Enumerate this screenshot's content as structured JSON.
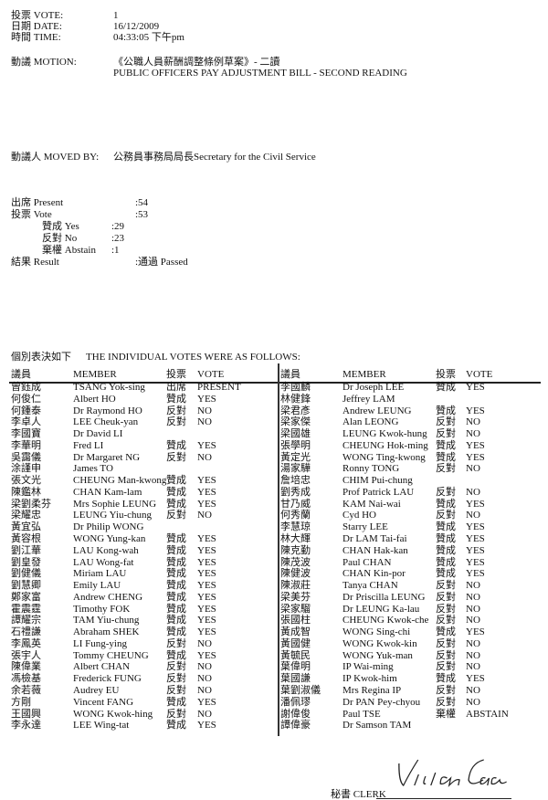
{
  "header": {
    "vote_label": "投票 VOTE:",
    "vote_value": "1",
    "date_label": "日期 DATE:",
    "date_value": "16/12/2009",
    "time_label": "時間 TIME:",
    "time_value": "04:33:05 下午pm",
    "motion_label": "動議 MOTION:",
    "motion_cn": "《公職人員薪酬調整條例草案》- 二讀",
    "motion_en": "PUBLIC OFFICERS PAY ADJUSTMENT BILL - SECOND READING",
    "moved_by_label": "動議人 MOVED BY:",
    "moved_by_value": "公務員事務局局長Secretary for the Civil Service"
  },
  "summary": {
    "present_label": "出席 Present",
    "present_value": ":54",
    "vote_label": "投票 Vote",
    "vote_value": ":53",
    "yes_label": "贊成 Yes",
    "yes_value": ":29",
    "no_label": "反對 No",
    "no_value": ":23",
    "abstain_label": "棄權 Abstain",
    "abstain_value": ":1",
    "result_label": "結果 Result",
    "result_value": ":通過 Passed"
  },
  "individual": {
    "heading_cn": "個別表決如下",
    "heading_en": "THE INDIVIDUAL VOTES WERE AS FOLLOWS:",
    "columns": [
      "議員",
      "MEMBER",
      "投票",
      "VOTE"
    ],
    "left": [
      [
        "曾鈺成",
        "TSANG Yok-sing",
        "出席",
        "PRESENT"
      ],
      [
        "何俊仁",
        "Albert HO",
        "贊成",
        "YES"
      ],
      [
        "何鍾泰",
        "Dr Raymond HO",
        "反對",
        "NO"
      ],
      [
        "李卓人",
        "LEE Cheuk-yan",
        "反對",
        "NO"
      ],
      [
        "李國寶",
        "Dr David LI",
        "",
        ""
      ],
      [
        "李華明",
        "Fred LI",
        "贊成",
        "YES"
      ],
      [
        "吳靄儀",
        "Dr Margaret NG",
        "反對",
        "NO"
      ],
      [
        "涂謹申",
        "James TO",
        "",
        ""
      ],
      [
        "張文光",
        "CHEUNG Man-kwong",
        "贊成",
        "YES"
      ],
      [
        "陳鑑林",
        "CHAN Kam-lam",
        "贊成",
        "YES"
      ],
      [
        "梁劉柔芬",
        "Mrs Sophie LEUNG",
        "贊成",
        "YES"
      ],
      [
        "梁耀忠",
        "LEUNG Yiu-chung",
        "反對",
        "NO"
      ],
      [
        "黃宜弘",
        "Dr Philip WONG",
        "",
        ""
      ],
      [
        "黃容根",
        "WONG Yung-kan",
        "贊成",
        "YES"
      ],
      [
        "劉江華",
        "LAU Kong-wah",
        "贊成",
        "YES"
      ],
      [
        "劉皇發",
        "LAU Wong-fat",
        "贊成",
        "YES"
      ],
      [
        "劉健儀",
        "Miriam LAU",
        "贊成",
        "YES"
      ],
      [
        "劉慧卿",
        "Emily LAU",
        "贊成",
        "YES"
      ],
      [
        "鄭家富",
        "Andrew CHENG",
        "贊成",
        "YES"
      ],
      [
        "霍震霆",
        "Timothy FOK",
        "贊成",
        "YES"
      ],
      [
        "譚耀宗",
        "TAM Yiu-chung",
        "贊成",
        "YES"
      ],
      [
        "石禮謙",
        "Abraham SHEK",
        "贊成",
        "YES"
      ],
      [
        "李鳳英",
        "LI Fung-ying",
        "反對",
        "NO"
      ],
      [
        "張宇人",
        "Tommy CHEUNG",
        "贊成",
        "YES"
      ],
      [
        "陳偉業",
        "Albert CHAN",
        "反對",
        "NO"
      ],
      [
        "馮檢基",
        "Frederick FUNG",
        "反對",
        "NO"
      ],
      [
        "余若薇",
        "Audrey EU",
        "反對",
        "NO"
      ],
      [
        "方剛",
        "Vincent FANG",
        "贊成",
        "YES"
      ],
      [
        "王國興",
        "WONG Kwok-hing",
        "反對",
        "NO"
      ],
      [
        "李永達",
        "LEE Wing-tat",
        "贊成",
        "YES"
      ]
    ],
    "right": [
      [
        "李國麟",
        "Dr Joseph LEE",
        "贊成",
        "YES"
      ],
      [
        "林健鋒",
        "Jeffrey LAM",
        "",
        ""
      ],
      [
        "梁君彥",
        "Andrew LEUNG",
        "贊成",
        "YES"
      ],
      [
        "梁家傑",
        "Alan LEONG",
        "反對",
        "NO"
      ],
      [
        "梁國雄",
        "LEUNG Kwok-hung",
        "反對",
        "NO"
      ],
      [
        "張學明",
        "CHEUNG Hok-ming",
        "贊成",
        "YES"
      ],
      [
        "黃定光",
        "WONG Ting-kwong",
        "贊成",
        "YES"
      ],
      [
        "湯家驊",
        "Ronny TONG",
        "反對",
        "NO"
      ],
      [
        "詹培忠",
        "CHIM Pui-chung",
        "",
        ""
      ],
      [
        "劉秀成",
        "Prof Patrick LAU",
        "反對",
        "NO"
      ],
      [
        "甘乃威",
        "KAM Nai-wai",
        "贊成",
        "YES"
      ],
      [
        "何秀蘭",
        "Cyd HO",
        "反對",
        "NO"
      ],
      [
        "李慧琼",
        "Starry LEE",
        "贊成",
        "YES"
      ],
      [
        "林大輝",
        "Dr LAM Tai-fai",
        "贊成",
        "YES"
      ],
      [
        "陳克勤",
        "CHAN Hak-kan",
        "贊成",
        "YES"
      ],
      [
        "陳茂波",
        "Paul CHAN",
        "贊成",
        "YES"
      ],
      [
        "陳健波",
        "CHAN Kin-por",
        "贊成",
        "YES"
      ],
      [
        "陳淑莊",
        "Tanya CHAN",
        "反對",
        "NO"
      ],
      [
        "梁美芬",
        "Dr Priscilla LEUNG",
        "反對",
        "NO"
      ],
      [
        "梁家騮",
        "Dr LEUNG Ka-lau",
        "反對",
        "NO"
      ],
      [
        "張國柱",
        "CHEUNG Kwok-che",
        "反對",
        "NO"
      ],
      [
        "黃成智",
        "WONG Sing-chi",
        "贊成",
        "YES"
      ],
      [
        "黃國健",
        "WONG Kwok-kin",
        "反對",
        "NO"
      ],
      [
        "黃毓民",
        "WONG Yuk-man",
        "反對",
        "NO"
      ],
      [
        "葉偉明",
        "IP Wai-ming",
        "反對",
        "NO"
      ],
      [
        "葉國謙",
        "IP Kwok-him",
        "贊成",
        "YES"
      ],
      [
        "葉劉淑儀",
        "Mrs Regina IP",
        "反對",
        "NO"
      ],
      [
        "潘佩璆",
        "Dr PAN Pey-chyou",
        "反對",
        "NO"
      ],
      [
        "謝偉俊",
        "Paul TSE",
        "棄權",
        "ABSTAIN"
      ],
      [
        "譚偉豪",
        "Dr Samson TAM",
        "",
        ""
      ]
    ]
  },
  "footer": {
    "clerk_label": "秘書 CLERK",
    "signature": "Vivian Chan"
  }
}
